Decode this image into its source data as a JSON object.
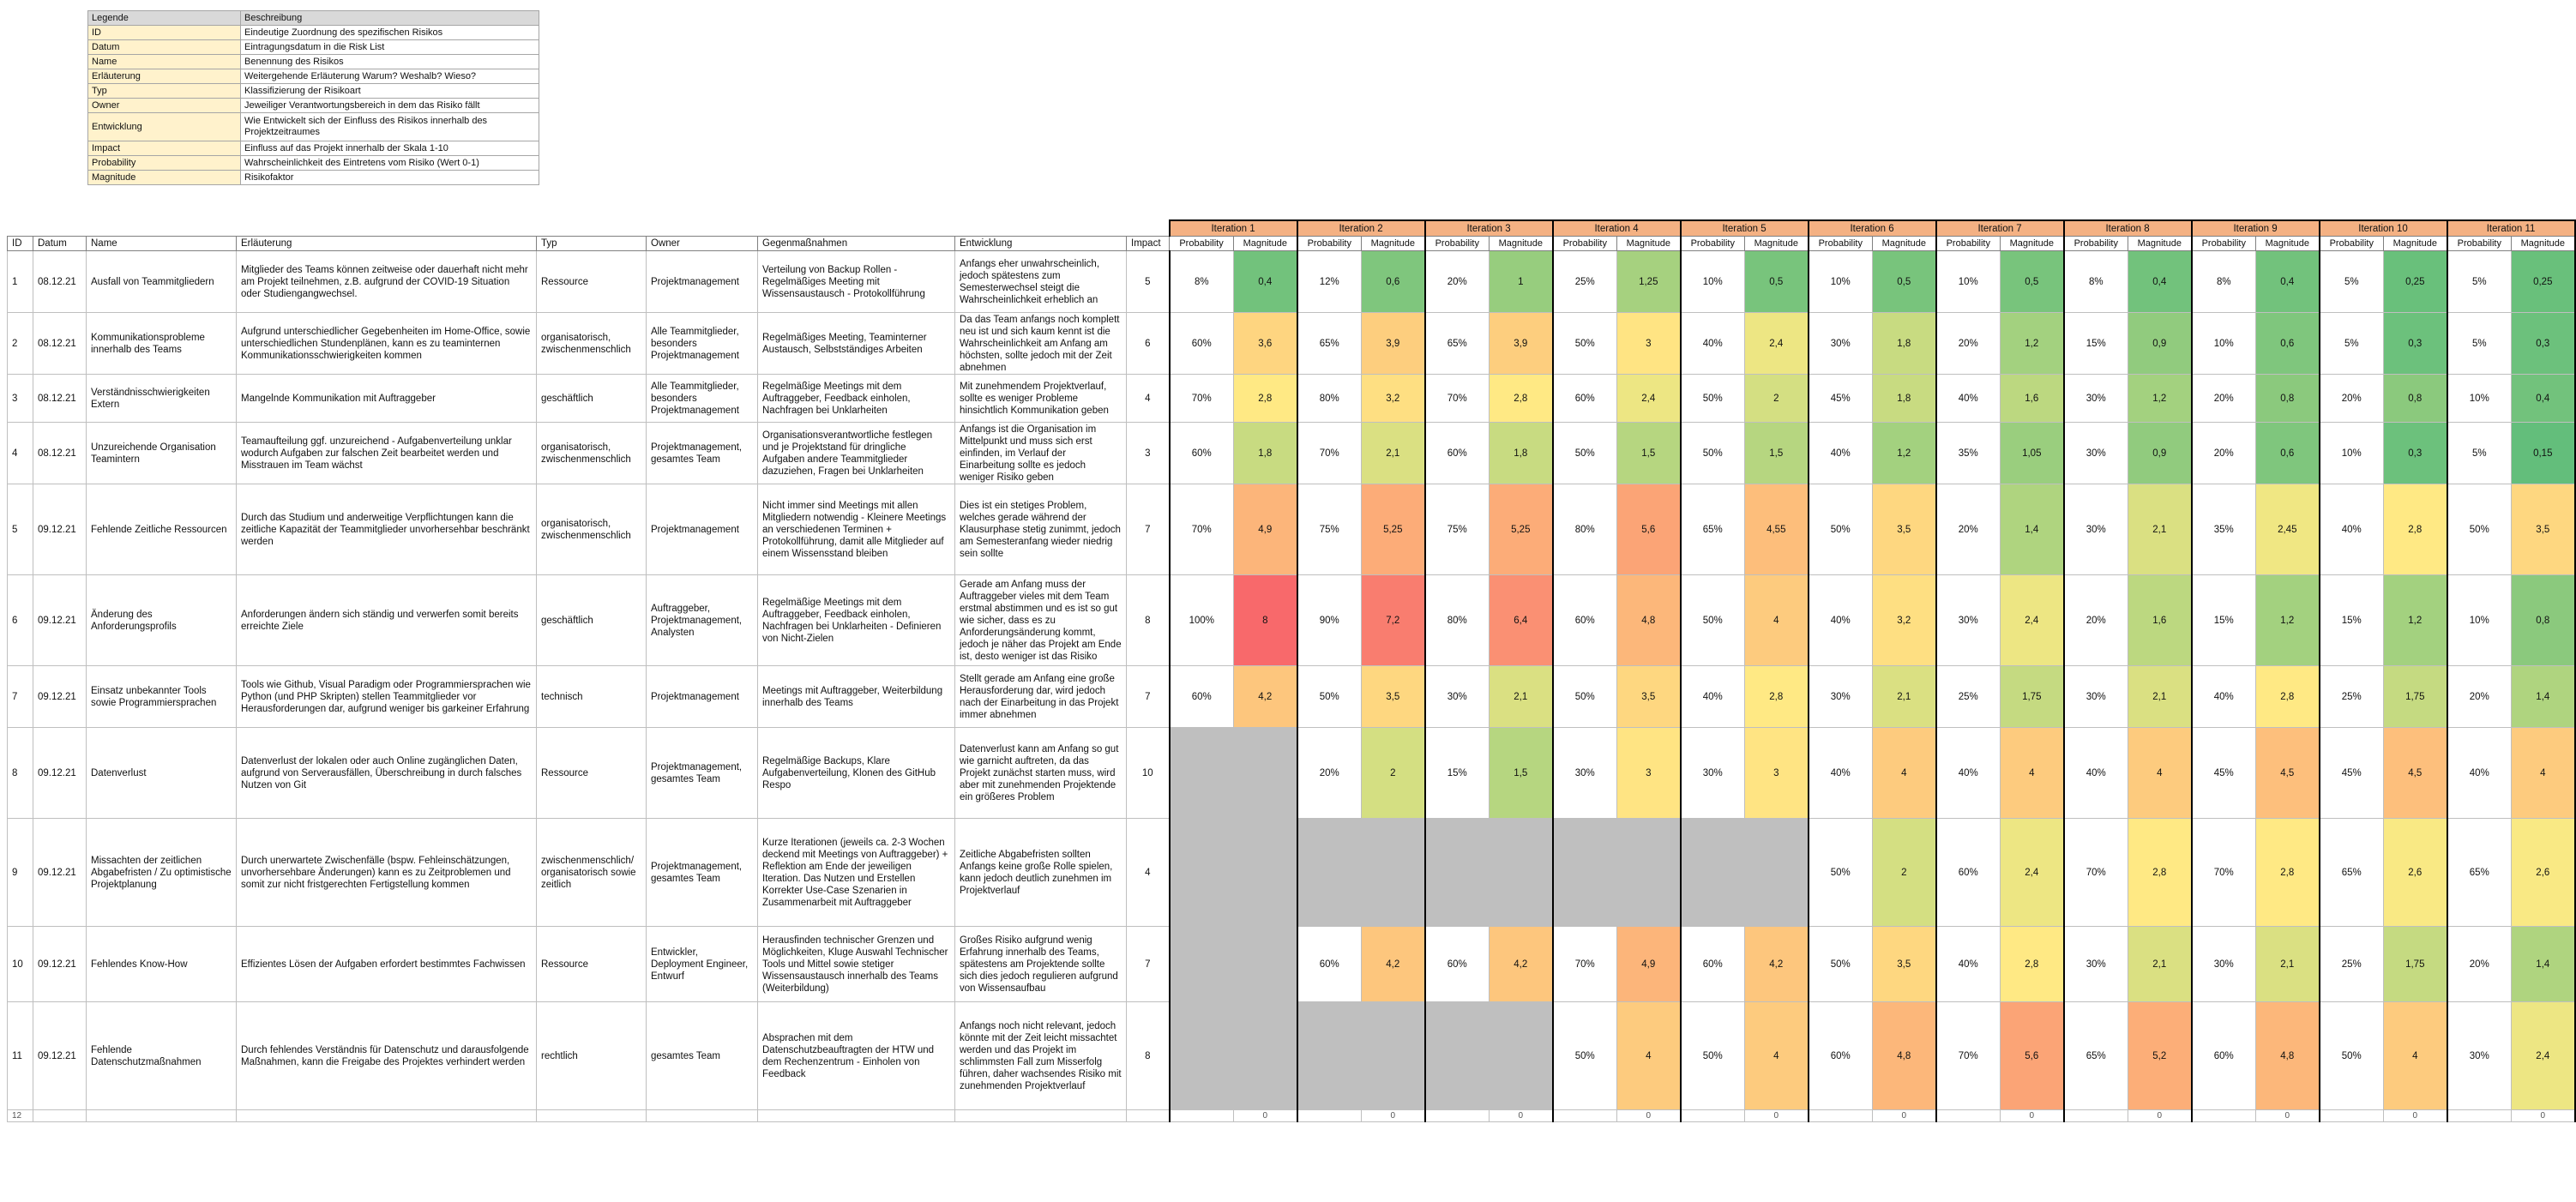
{
  "legend": {
    "header": [
      "Legende",
      "Beschreibung"
    ],
    "rows": [
      {
        "key": "ID",
        "value": "Eindeutige Zuordnung des spezifischen Risikos"
      },
      {
        "key": "Datum",
        "value": "Eintragungsdatum in die Risk List"
      },
      {
        "key": "Name",
        "value": "Benennung des Risikos"
      },
      {
        "key": "Erläuterung",
        "value": "Weitergehende Erläuterung Warum? Weshalb? Wieso?"
      },
      {
        "key": "Typ",
        "value": "Klassifizierung der Risikoart"
      },
      {
        "key": "Owner",
        "value": "Jeweiliger Verantwortungsbereich in dem das Risiko fällt"
      },
      {
        "key": "Entwicklung",
        "value": "Wie Entwickelt sich der Einfluss des Risikos innerhalb des Projektzeitraumes"
      },
      {
        "key": "Impact",
        "value": "Einfluss auf das Projekt innerhalb der Skala 1-10"
      },
      {
        "key": "Probability",
        "value": "Wahrscheinlichkeit des Eintretens vom Risiko (Wert 0-1)"
      },
      {
        "key": "Magnitude",
        "value": "Risikofaktor"
      }
    ]
  },
  "table": {
    "columns": [
      "ID",
      "Datum",
      "Name",
      "Erläuterung",
      "Typ",
      "Owner",
      "Gegenmaßnahmen",
      "Entwicklung",
      "Impact"
    ],
    "iterations": [
      "Iteration 1",
      "Iteration 2",
      "Iteration 3",
      "Iteration 4",
      "Iteration 5",
      "Iteration 6",
      "Iteration 7",
      "Iteration 8",
      "Iteration 9",
      "Iteration 10",
      "Iteration 11"
    ],
    "sub_headers": [
      "Probability",
      "Magnitude"
    ],
    "rows": [
      {
        "id": "1",
        "datum": "08.12.21",
        "name": "Ausfall von Teammitgliedern",
        "erlaeuterung": "Mitglieder des Teams können zeitweise oder dauerhaft nicht mehr am Projekt teilnehmen, z.B. aufgrund der COVID-19 Situation oder Studiengangwechsel.",
        "typ": "Ressource",
        "owner": "Projektmanagement",
        "gegen": "Verteilung von Backup Rollen - Regelmäßiges Meeting mit Wissensaustausch - Protokollführung",
        "entw": "Anfangs eher unwahrscheinlich, jedoch spätestens zum Semesterwechsel steigt die Wahrscheinlichkeit erheblich an",
        "impact": "5",
        "iters": [
          [
            "8%",
            "0,4"
          ],
          [
            "12%",
            "0,6"
          ],
          [
            "20%",
            "1"
          ],
          [
            "25%",
            "1,25"
          ],
          [
            "10%",
            "0,5"
          ],
          [
            "10%",
            "0,5"
          ],
          [
            "10%",
            "0,5"
          ],
          [
            "8%",
            "0,4"
          ],
          [
            "8%",
            "0,4"
          ],
          [
            "5%",
            "0,25"
          ],
          [
            "5%",
            "0,25"
          ]
        ]
      },
      {
        "id": "2",
        "datum": "08.12.21",
        "name": "Kommunikationsprobleme innerhalb des Teams",
        "erlaeuterung": "Aufgrund unterschiedlicher Gegebenheiten im Home-Office, sowie unterschiedlichen Stundenplänen, kann es zu teaminternen Kommunikationsschwierigkeiten kommen",
        "typ": "organisatorisch, zwischenmenschlich",
        "owner": "Alle Teammitglieder, besonders Projektmanagement",
        "gegen": "Regelmäßiges Meeting, Teaminterner Austausch, Selbstständiges Arbeiten",
        "entw": "Da das Team anfangs noch komplett neu ist und sich kaum kennt ist die Wahrscheinlichkeit am Anfang am höchsten, sollte jedoch mit der Zeit abnehmen",
        "impact": "6",
        "iters": [
          [
            "60%",
            "3,6"
          ],
          [
            "65%",
            "3,9"
          ],
          [
            "65%",
            "3,9"
          ],
          [
            "50%",
            "3"
          ],
          [
            "40%",
            "2,4"
          ],
          [
            "30%",
            "1,8"
          ],
          [
            "20%",
            "1,2"
          ],
          [
            "15%",
            "0,9"
          ],
          [
            "10%",
            "0,6"
          ],
          [
            "5%",
            "0,3"
          ],
          [
            "5%",
            "0,3"
          ]
        ]
      },
      {
        "id": "3",
        "datum": "08.12.21",
        "name": "Verständnisschwierigkeiten Extern",
        "erlaeuterung": "Mangelnde Kommunikation mit Auftraggeber",
        "typ": "geschäftlich",
        "owner": "Alle Teammitglieder, besonders Projektmanagement",
        "gegen": "Regelmäßige Meetings mit dem Auftraggeber, Feedback einholen, Nachfragen bei Unklarheiten",
        "entw": "Mit zunehmendem Projektverlauf, sollte es weniger Probleme hinsichtlich Kommunikation geben",
        "impact": "4",
        "iters": [
          [
            "70%",
            "2,8"
          ],
          [
            "80%",
            "3,2"
          ],
          [
            "70%",
            "2,8"
          ],
          [
            "60%",
            "2,4"
          ],
          [
            "50%",
            "2"
          ],
          [
            "45%",
            "1,8"
          ],
          [
            "40%",
            "1,6"
          ],
          [
            "30%",
            "1,2"
          ],
          [
            "20%",
            "0,8"
          ],
          [
            "20%",
            "0,8"
          ],
          [
            "10%",
            "0,4"
          ]
        ]
      },
      {
        "id": "4",
        "datum": "08.12.21",
        "name": "Unzureichende Organisation Teamintern",
        "erlaeuterung": "Teamaufteilung ggf. unzureichend - Aufgabenverteilung unklar wodurch Aufgaben zur falschen Zeit bearbeitet werden und Misstrauen im Team wächst",
        "typ": "organisatorisch, zwischenmenschlich",
        "owner": "Projektmanagement, gesamtes Team",
        "gegen": "Organisationsverantwortliche festlegen und je Projektstand für dringliche Aufgaben andere Teammitglieder dazuziehen, Fragen bei Unklarheiten",
        "entw": "Anfangs ist die Organisation im Mittelpunkt und muss sich erst einfinden, im Verlauf der Einarbeitung sollte es jedoch weniger Risiko geben",
        "impact": "3",
        "iters": [
          [
            "60%",
            "1,8"
          ],
          [
            "70%",
            "2,1"
          ],
          [
            "60%",
            "1,8"
          ],
          [
            "50%",
            "1,5"
          ],
          [
            "50%",
            "1,5"
          ],
          [
            "40%",
            "1,2"
          ],
          [
            "35%",
            "1,05"
          ],
          [
            "30%",
            "0,9"
          ],
          [
            "20%",
            "0,6"
          ],
          [
            "10%",
            "0,3"
          ],
          [
            "5%",
            "0,15"
          ]
        ]
      },
      {
        "id": "5",
        "datum": "09.12.21",
        "name": "Fehlende Zeitliche Ressourcen",
        "erlaeuterung": "Durch das Studium und anderweitige Verpflichtungen kann die zeitliche Kapazität der Teammitglieder unvorhersehbar beschränkt werden",
        "typ": "organisatorisch, zwischenmenschlich",
        "owner": "Projektmanagement",
        "gegen": "Nicht immer sind Meetings mit allen Mitgliedern notwendig - Kleinere Meetings an verschiedenen Terminen + Protokollführung, damit alle Mitglieder auf einem Wissensstand bleiben",
        "entw": "Dies ist ein stetiges Problem, welches gerade während der Klausurphase stetig zunimmt, jedoch am Semesteranfang wieder niedrig sein sollte",
        "impact": "7",
        "iters": [
          [
            "70%",
            "4,9"
          ],
          [
            "75%",
            "5,25"
          ],
          [
            "75%",
            "5,25"
          ],
          [
            "80%",
            "5,6"
          ],
          [
            "65%",
            "4,55"
          ],
          [
            "50%",
            "3,5"
          ],
          [
            "20%",
            "1,4"
          ],
          [
            "30%",
            "2,1"
          ],
          [
            "35%",
            "2,45"
          ],
          [
            "40%",
            "2,8"
          ],
          [
            "50%",
            "3,5"
          ]
        ]
      },
      {
        "id": "6",
        "datum": "09.12.21",
        "name": "Änderung des Anforderungsprofils",
        "erlaeuterung": "Anforderungen ändern sich ständig und verwerfen somit bereits erreichte Ziele",
        "typ": "geschäftlich",
        "owner": "Auftraggeber, Projektmanagement, Analysten",
        "gegen": "Regelmäßige Meetings mit dem Auftraggeber, Feedback einholen, Nachfragen bei Unklarheiten - Definieren von Nicht-Zielen",
        "entw": "Gerade am Anfang muss der Auftraggeber vieles mit dem Team erstmal abstimmen und es ist so gut wie sicher, dass es zu Anforderungsänderung kommt, jedoch je näher das Projekt am Ende ist, desto weniger ist das Risiko",
        "impact": "8",
        "iters": [
          [
            "100%",
            "8"
          ],
          [
            "90%",
            "7,2"
          ],
          [
            "80%",
            "6,4"
          ],
          [
            "60%",
            "4,8"
          ],
          [
            "50%",
            "4"
          ],
          [
            "40%",
            "3,2"
          ],
          [
            "30%",
            "2,4"
          ],
          [
            "20%",
            "1,6"
          ],
          [
            "15%",
            "1,2"
          ],
          [
            "15%",
            "1,2"
          ],
          [
            "10%",
            "0,8"
          ]
        ]
      },
      {
        "id": "7",
        "datum": "09.12.21",
        "name": "Einsatz unbekannter Tools sowie Programmiersprachen",
        "erlaeuterung": "Tools wie Github, Visual Paradigm oder Programmiersprachen wie Python (und PHP Skripten) stellen Teammitglieder vor Herausforderungen dar, aufgrund weniger bis garkeiner Erfahrung",
        "typ": "technisch",
        "owner": "Projektmanagement",
        "gegen": "Meetings mit Auftraggeber, Weiterbildung innerhalb des Teams",
        "entw": "Stellt gerade am Anfang eine große Herausforderung dar, wird jedoch nach der Einarbeitung in das Projekt immer abnehmen",
        "impact": "7",
        "iters": [
          [
            "60%",
            "4,2"
          ],
          [
            "50%",
            "3,5"
          ],
          [
            "30%",
            "2,1"
          ],
          [
            "50%",
            "3,5"
          ],
          [
            "40%",
            "2,8"
          ],
          [
            "30%",
            "2,1"
          ],
          [
            "25%",
            "1,75"
          ],
          [
            "30%",
            "2,1"
          ],
          [
            "40%",
            "2,8"
          ],
          [
            "25%",
            "1,75"
          ],
          [
            "20%",
            "1,4"
          ]
        ]
      },
      {
        "id": "8",
        "datum": "09.12.21",
        "name": "Datenverlust",
        "erlaeuterung": "Datenverlust der lokalen oder auch Online zugänglichen Daten, aufgrund von Serverausfällen, Überschreibung in durch falsches Nutzen von Git",
        "typ": "Ressource",
        "owner": "Projektmanagement, gesamtes Team",
        "gegen": "Regelmäßige Backups, Klare Aufgabenverteilung, Klonen des GitHub Respo",
        "entw": "Datenverlust kann am Anfang so gut wie garnicht auftreten, da das Projekt zunächst starten muss, wird aber mit zunehmenden Projektende ein größeres Problem",
        "impact": "10",
        "iters": [
          null,
          [
            "20%",
            "2"
          ],
          [
            "15%",
            "1,5"
          ],
          [
            "30%",
            "3"
          ],
          [
            "30%",
            "3"
          ],
          [
            "40%",
            "4"
          ],
          [
            "40%",
            "4"
          ],
          [
            "40%",
            "4"
          ],
          [
            "45%",
            "4,5"
          ],
          [
            "45%",
            "4,5"
          ],
          [
            "40%",
            "4"
          ]
        ]
      },
      {
        "id": "9",
        "datum": "09.12.21",
        "name": "Missachten der zeitlichen Abgabefristen / Zu optimistische Projektplanung",
        "erlaeuterung": "Durch unerwartete Zwischenfälle (bspw. Fehleinschätzungen, unvorhersehbare Änderungen) kann es zu Zeitproblemen und somit zur nicht fristgerechten Fertigstellung kommen",
        "typ": "zwischenmenschlich/ organisatorisch sowie zeitlich",
        "owner": "Projektmanagement, gesamtes Team",
        "gegen": "Kurze Iterationen (jeweils ca. 2-3 Wochen deckend mit Meetings von Auftraggeber) + Reflektion am Ende der jeweiligen Iteration. Das Nutzen und Erstellen Korrekter Use-Case Szenarien in Zusammenarbeit mit Auftraggeber",
        "entw": "Zeitliche Abgabefristen sollten Anfangs keine große Rolle spielen, kann jedoch deutlich zunehmen im Projektverlauf",
        "impact": "4",
        "iters": [
          null,
          null,
          null,
          null,
          null,
          [
            "50%",
            "2"
          ],
          [
            "60%",
            "2,4"
          ],
          [
            "70%",
            "2,8"
          ],
          [
            "70%",
            "2,8"
          ],
          [
            "65%",
            "2,6"
          ],
          [
            "65%",
            "2,6"
          ]
        ]
      },
      {
        "id": "10",
        "datum": "09.12.21",
        "name": "Fehlendes Know-How",
        "erlaeuterung": "Effizientes Lösen der Aufgaben erfordert bestimmtes Fachwissen",
        "typ": "Ressource",
        "owner": "Entwickler, Deployment Engineer, Entwurf",
        "gegen": "Herausfinden technischer Grenzen und Möglichkeiten, Kluge Auswahl Technischer Tools und Mittel sowie stetiger Wissensaustausch innerhalb des Teams (Weiterbildung)",
        "entw": "Großes Risiko aufgrund wenig Erfahrung innerhalb des Teams, spätestens am Projektende sollte sich dies jedoch regulieren aufgrund von Wissensaufbau",
        "impact": "7",
        "iters": [
          null,
          [
            "60%",
            "4,2"
          ],
          [
            "60%",
            "4,2"
          ],
          [
            "70%",
            "4,9"
          ],
          [
            "60%",
            "4,2"
          ],
          [
            "50%",
            "3,5"
          ],
          [
            "40%",
            "2,8"
          ],
          [
            "30%",
            "2,1"
          ],
          [
            "30%",
            "2,1"
          ],
          [
            "25%",
            "1,75"
          ],
          [
            "20%",
            "1,4"
          ]
        ]
      },
      {
        "id": "11",
        "datum": "09.12.21",
        "name": "Fehlende Datenschutzmaßnahmen",
        "erlaeuterung": "Durch fehlendes Verständnis für Datenschutz und darausfolgende Maßnahmen, kann die Freigabe des Projektes verhindert werden",
        "typ": "rechtlich",
        "owner": "gesamtes Team",
        "gegen": "Absprachen mit dem Datenschutzbeauftragten der HTW und dem Rechenzentrum - Einholen von Feedback",
        "entw": "Anfangs noch nicht relevant, jedoch könnte mit der Zeit leicht missachtet werden und das Projekt im schlimmsten Fall zum Misserfolg führen, daher wachsendes Risiko mit zunehmenden Projektverlauf",
        "impact": "8",
        "iters": [
          null,
          null,
          null,
          [
            "50%",
            "4"
          ],
          [
            "50%",
            "4"
          ],
          [
            "60%",
            "4,8"
          ],
          [
            "70%",
            "5,6"
          ],
          [
            "65%",
            "5,2"
          ],
          [
            "60%",
            "4,8"
          ],
          [
            "50%",
            "4"
          ],
          [
            "30%",
            "2,4"
          ]
        ]
      }
    ],
    "last_row": {
      "id": "12",
      "values": [
        "0",
        "0",
        "0",
        "0",
        "0",
        "0",
        "0",
        "0",
        "0",
        "0",
        "0"
      ]
    }
  },
  "colors": {
    "header_band": "#f4b183",
    "legend_key": "#fff2cc",
    "empty_cell": "#bfbfbf",
    "scale_low": "#63be7b",
    "scale_mid": "#ffeb84",
    "scale_high": "#f8696b"
  }
}
